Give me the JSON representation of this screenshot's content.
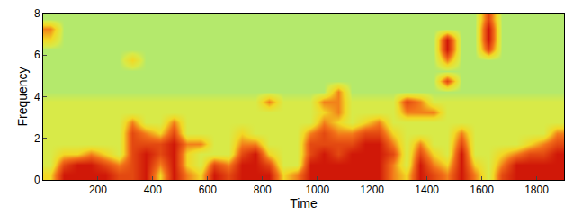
{
  "chart_data": {
    "type": "heatmap",
    "x_label": "Time",
    "y_label": "Frequency",
    "x": [
      25,
      75,
      125,
      175,
      225,
      275,
      325,
      375,
      425,
      475,
      525,
      575,
      625,
      675,
      725,
      775,
      825,
      875,
      925,
      975,
      1025,
      1075,
      1125,
      1175,
      1225,
      1275,
      1325,
      1375,
      1425,
      1475,
      1525,
      1575,
      1625,
      1675,
      1725,
      1775,
      1825,
      1875
    ],
    "y": [
      0.25,
      0.75,
      1.25,
      1.75,
      2.25,
      2.75,
      3.25,
      3.75,
      4.25,
      4.75,
      5.25,
      5.75,
      6.25,
      6.75,
      7.25,
      7.75
    ],
    "z": [
      [
        7,
        10,
        10,
        10,
        10,
        9,
        9,
        10,
        7,
        10,
        8,
        7,
        10,
        9,
        10,
        10,
        10,
        7,
        8,
        10,
        10,
        10,
        10,
        10,
        10,
        8,
        7,
        10,
        9,
        8,
        10,
        8,
        6,
        9,
        10,
        10,
        10,
        10
      ],
      [
        6,
        9,
        10,
        10,
        9,
        8,
        9,
        10,
        8,
        10,
        7,
        6,
        9,
        8,
        10,
        10,
        9,
        6,
        6,
        10,
        10,
        10,
        10,
        10,
        10,
        8,
        6,
        10,
        8,
        7,
        10,
        7,
        6,
        8,
        10,
        10,
        10,
        10
      ],
      [
        6,
        7,
        7,
        8,
        7,
        6,
        9,
        10,
        9,
        10,
        7,
        6,
        6,
        6,
        9,
        10,
        7,
        6,
        6,
        9,
        10,
        9,
        10,
        10,
        10,
        9,
        6,
        9,
        7,
        6,
        10,
        6,
        6,
        7,
        8,
        9,
        9,
        10
      ],
      [
        6,
        6,
        6,
        6,
        6,
        6,
        9,
        9,
        9,
        10,
        8,
        8,
        6,
        6,
        8,
        8,
        6,
        6,
        6,
        9,
        9,
        9,
        9,
        10,
        10,
        8,
        6,
        8,
        6,
        6,
        9,
        6,
        6,
        6,
        6,
        7,
        8,
        9
      ],
      [
        6,
        6,
        6,
        6,
        6,
        6,
        9,
        8,
        7,
        9,
        6,
        6,
        6,
        6,
        7,
        6,
        6,
        6,
        6,
        8,
        9,
        8,
        8,
        9,
        9,
        7,
        6,
        6,
        6,
        6,
        8,
        6,
        6,
        6,
        6,
        6,
        6,
        8
      ],
      [
        6,
        6,
        6,
        6,
        6,
        6,
        8,
        6,
        6,
        8,
        6,
        6,
        6,
        6,
        6,
        6,
        6,
        6,
        6,
        6,
        8,
        7,
        6,
        7,
        8,
        6,
        6,
        6,
        6,
        6,
        6,
        6,
        6,
        6,
        6,
        6,
        6,
        6
      ],
      [
        6,
        6,
        6,
        6,
        6,
        6,
        6,
        6,
        6,
        6,
        6,
        6,
        6,
        6,
        6,
        6,
        6,
        6,
        6,
        6,
        7,
        8,
        6,
        6,
        6,
        6,
        8,
        8,
        8,
        6,
        6,
        6,
        6,
        6,
        6,
        6,
        6,
        6
      ],
      [
        6,
        6,
        6,
        6,
        6,
        6,
        6,
        6,
        6,
        6,
        6,
        6,
        6,
        6,
        6,
        6,
        8,
        6,
        6,
        6,
        8,
        8,
        6,
        6,
        6,
        6,
        9,
        8,
        6,
        6,
        6,
        6,
        6,
        6,
        6,
        6,
        6,
        6
      ],
      [
        5.5,
        5.5,
        5.5,
        5.5,
        5.5,
        5.5,
        5.5,
        5.5,
        5.5,
        5.5,
        5.5,
        5.5,
        5.5,
        5.5,
        5.5,
        5.5,
        5.5,
        5.5,
        5.5,
        5.5,
        5.5,
        8,
        5.5,
        5.5,
        5.5,
        5.5,
        5.5,
        5.5,
        5.5,
        5.5,
        5.5,
        5.5,
        5.5,
        5.5,
        5.5,
        5.5,
        5.5,
        5.5
      ],
      [
        5.5,
        5.5,
        5.5,
        5.5,
        5.5,
        5.5,
        5.5,
        5.5,
        5.5,
        5.5,
        5.5,
        5.5,
        5.5,
        5.5,
        5.5,
        5.5,
        5.5,
        5.5,
        5.5,
        5.5,
        5.5,
        5.5,
        5.5,
        5.5,
        5.5,
        5.5,
        5.5,
        5.5,
        5.5,
        9,
        5.5,
        5.5,
        5.5,
        5.5,
        5.5,
        5.5,
        5.5,
        5.5
      ],
      [
        5.5,
        5.5,
        5.5,
        5.5,
        5.5,
        5.5,
        5.5,
        5.5,
        5.5,
        5.5,
        5.5,
        5.5,
        5.5,
        5.5,
        5.5,
        5.5,
        5.5,
        5.5,
        5.5,
        5.5,
        5.5,
        5.5,
        5.5,
        5.5,
        5.5,
        5.5,
        5.5,
        5.5,
        5.5,
        5.5,
        5.5,
        5.5,
        5.5,
        5.5,
        5.5,
        5.5,
        5.5,
        5.5
      ],
      [
        5.5,
        5.5,
        5.5,
        5.5,
        5.5,
        5.5,
        7,
        5.5,
        5.5,
        5.5,
        5.5,
        5.5,
        5.5,
        5.5,
        5.5,
        5.5,
        5.5,
        5.5,
        5.5,
        5.5,
        5.5,
        5.5,
        5.5,
        5.5,
        5.5,
        5.5,
        5.5,
        5.5,
        5.5,
        8,
        5.5,
        5.5,
        5.5,
        5.5,
        5.5,
        5.5,
        5.5,
        5.5
      ],
      [
        5.5,
        5.5,
        5.5,
        5.5,
        5.5,
        5.5,
        5.5,
        5.5,
        5.5,
        5.5,
        5.5,
        5.5,
        5.5,
        5.5,
        5.5,
        5.5,
        5.5,
        5.5,
        5.5,
        5.5,
        5.5,
        5.5,
        5.5,
        5.5,
        5.5,
        5.5,
        5.5,
        5.5,
        5.5,
        10,
        5.5,
        5.5,
        9,
        5.5,
        5.5,
        5.5,
        5.5,
        5.5
      ],
      [
        7,
        5.5,
        5.5,
        5.5,
        5.5,
        5.5,
        5.5,
        5.5,
        5.5,
        5.5,
        5.5,
        5.5,
        5.5,
        5.5,
        5.5,
        5.5,
        5.5,
        5.5,
        5.5,
        5.5,
        5.5,
        5.5,
        5.5,
        5.5,
        5.5,
        5.5,
        5.5,
        5.5,
        5.5,
        10,
        5.5,
        5.5,
        10,
        5.5,
        5.5,
        5.5,
        5.5,
        5.5
      ],
      [
        8,
        5.5,
        5.5,
        5.5,
        5.5,
        5.5,
        5.5,
        5.5,
        5.5,
        5.5,
        5.5,
        5.5,
        5.5,
        5.5,
        5.5,
        5.5,
        5.5,
        5.5,
        5.5,
        5.5,
        5.5,
        5.5,
        5.5,
        5.5,
        5.5,
        5.5,
        5.5,
        5.5,
        5.5,
        5.5,
        5.5,
        5.5,
        10,
        5.5,
        5.5,
        5.5,
        5.5,
        5.5
      ],
      [
        5.5,
        5.5,
        5.5,
        5.5,
        5.5,
        5.5,
        5.5,
        5.5,
        5.5,
        5.5,
        5.5,
        5.5,
        5.5,
        5.5,
        5.5,
        5.5,
        5.5,
        5.5,
        5.5,
        5.5,
        5.5,
        5.5,
        5.5,
        5.5,
        5.5,
        5.5,
        5.5,
        5.5,
        5.5,
        5.5,
        5.5,
        5.5,
        9,
        5.5,
        5.5,
        5.5,
        5.5,
        5.5
      ]
    ],
    "zlim": [
      0,
      10
    ],
    "xlim": [
      0,
      1900
    ],
    "ylim": [
      0,
      8
    ],
    "xticks": [
      200,
      400,
      600,
      800,
      1000,
      1200,
      1400,
      1600,
      1800
    ],
    "yticks": [
      0,
      2,
      4,
      6,
      8
    ]
  }
}
